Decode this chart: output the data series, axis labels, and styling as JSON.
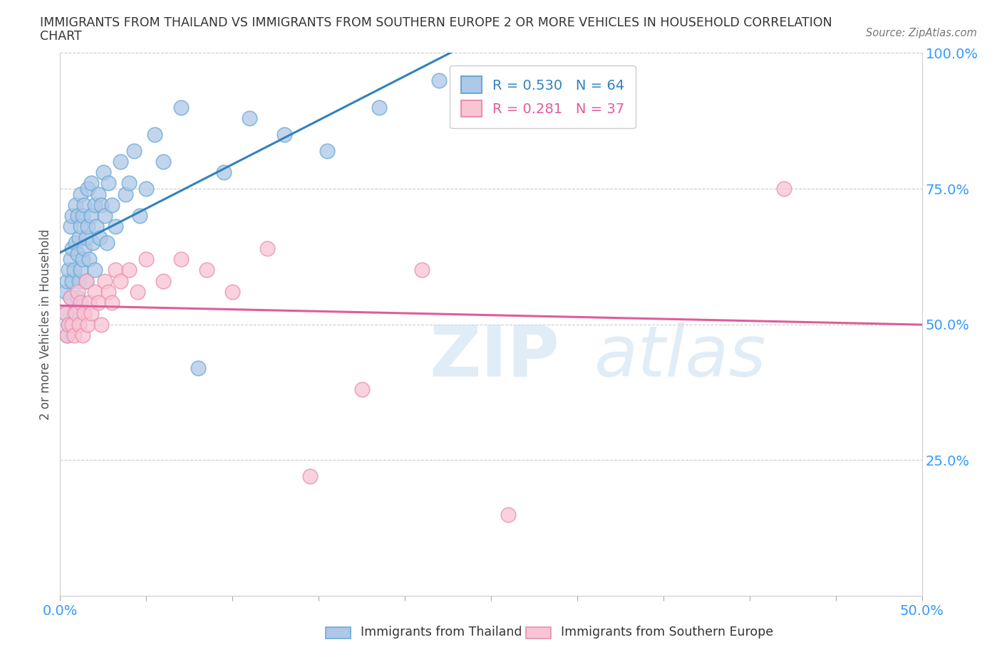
{
  "title_line1": "IMMIGRANTS FROM THAILAND VS IMMIGRANTS FROM SOUTHERN EUROPE 2 OR MORE VEHICLES IN HOUSEHOLD CORRELATION",
  "title_line2": "CHART",
  "source": "Source: ZipAtlas.com",
  "ylabel": "2 or more Vehicles in Household",
  "xmin": 0.0,
  "xmax": 0.5,
  "ymin": 0.0,
  "ymax": 1.0,
  "xticks": [
    0.0,
    0.05,
    0.1,
    0.15,
    0.2,
    0.25,
    0.3,
    0.35,
    0.4,
    0.45,
    0.5
  ],
  "xticklabels_show": {
    "0.0": "0.0%",
    "0.5": "50.0%"
  },
  "yticks": [
    0.0,
    0.25,
    0.5,
    0.75,
    1.0
  ],
  "yticklabels": [
    "",
    "25.0%",
    "50.0%",
    "75.0%",
    "100.0%"
  ],
  "legend1_label": "R = 0.530   N = 64",
  "legend2_label": "R = 0.281   N = 37",
  "line1_color": "#3182bd",
  "line2_color": "#e05c9a",
  "scatter1_facecolor": "#aec8e8",
  "scatter1_edgecolor": "#6aaad4",
  "scatter2_facecolor": "#f9c4d4",
  "scatter2_edgecolor": "#e890b0",
  "background_color": "#ffffff",
  "watermark_zip": "ZIP",
  "watermark_atlas": "atlas",
  "R1": 0.53,
  "N1": 64,
  "R2": 0.281,
  "N2": 37,
  "thailand_x": [
    0.003,
    0.003,
    0.004,
    0.004,
    0.005,
    0.005,
    0.006,
    0.006,
    0.006,
    0.007,
    0.007,
    0.007,
    0.008,
    0.008,
    0.009,
    0.009,
    0.01,
    0.01,
    0.01,
    0.011,
    0.011,
    0.012,
    0.012,
    0.012,
    0.013,
    0.013,
    0.014,
    0.014,
    0.015,
    0.015,
    0.016,
    0.016,
    0.017,
    0.018,
    0.018,
    0.019,
    0.02,
    0.02,
    0.021,
    0.022,
    0.023,
    0.024,
    0.025,
    0.026,
    0.027,
    0.028,
    0.03,
    0.032,
    0.035,
    0.038,
    0.04,
    0.043,
    0.046,
    0.05,
    0.055,
    0.06,
    0.07,
    0.08,
    0.095,
    0.11,
    0.13,
    0.155,
    0.185,
    0.22
  ],
  "thailand_y": [
    0.52,
    0.56,
    0.48,
    0.58,
    0.5,
    0.6,
    0.55,
    0.62,
    0.68,
    0.58,
    0.64,
    0.7,
    0.52,
    0.6,
    0.65,
    0.72,
    0.55,
    0.63,
    0.7,
    0.58,
    0.66,
    0.6,
    0.68,
    0.74,
    0.62,
    0.7,
    0.64,
    0.72,
    0.58,
    0.66,
    0.68,
    0.75,
    0.62,
    0.7,
    0.76,
    0.65,
    0.6,
    0.72,
    0.68,
    0.74,
    0.66,
    0.72,
    0.78,
    0.7,
    0.65,
    0.76,
    0.72,
    0.68,
    0.8,
    0.74,
    0.76,
    0.82,
    0.7,
    0.75,
    0.85,
    0.8,
    0.9,
    0.42,
    0.78,
    0.88,
    0.85,
    0.82,
    0.9,
    0.95
  ],
  "southern_europe_x": [
    0.003,
    0.004,
    0.005,
    0.006,
    0.007,
    0.008,
    0.009,
    0.01,
    0.011,
    0.012,
    0.013,
    0.014,
    0.015,
    0.016,
    0.017,
    0.018,
    0.02,
    0.022,
    0.024,
    0.026,
    0.028,
    0.03,
    0.032,
    0.035,
    0.04,
    0.045,
    0.05,
    0.06,
    0.07,
    0.085,
    0.1,
    0.12,
    0.145,
    0.175,
    0.21,
    0.26,
    0.42
  ],
  "southern_europe_y": [
    0.52,
    0.48,
    0.5,
    0.55,
    0.5,
    0.48,
    0.52,
    0.56,
    0.5,
    0.54,
    0.48,
    0.52,
    0.58,
    0.5,
    0.54,
    0.52,
    0.56,
    0.54,
    0.5,
    0.58,
    0.56,
    0.54,
    0.6,
    0.58,
    0.6,
    0.56,
    0.62,
    0.58,
    0.62,
    0.6,
    0.56,
    0.64,
    0.22,
    0.38,
    0.6,
    0.15,
    0.75
  ]
}
